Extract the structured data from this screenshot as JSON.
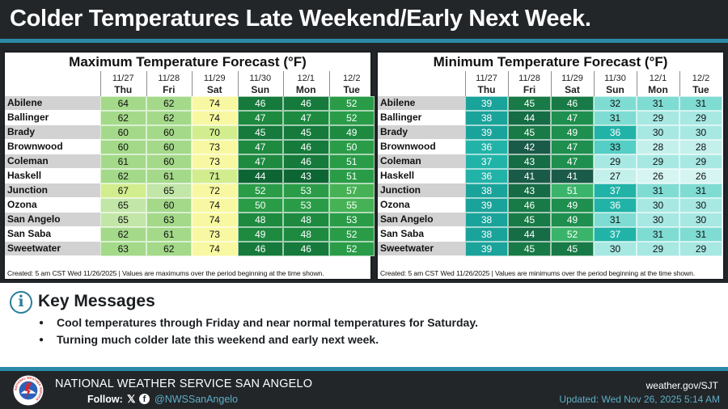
{
  "header": {
    "title": "Colder Temperatures Late Weekend/Early Next Week."
  },
  "dates": [
    "11/27",
    "11/28",
    "11/29",
    "11/30",
    "12/1",
    "12/2"
  ],
  "days": [
    "Thu",
    "Fri",
    "Sat",
    "Sun",
    "Mon",
    "Tue"
  ],
  "cities": [
    "Abilene",
    "Ballinger",
    "Brady",
    "Brownwood",
    "Coleman",
    "Haskell",
    "Junction",
    "Ozona",
    "San Angelo",
    "San Saba",
    "Sweetwater"
  ],
  "max_table": {
    "title": "Maximum Temperature Forecast (°F)",
    "values": [
      [
        64,
        62,
        74,
        46,
        46,
        52
      ],
      [
        62,
        62,
        74,
        47,
        47,
        52
      ],
      [
        60,
        60,
        70,
        45,
        45,
        49
      ],
      [
        60,
        60,
        73,
        47,
        46,
        50
      ],
      [
        61,
        60,
        73,
        47,
        46,
        51
      ],
      [
        62,
        61,
        71,
        44,
        43,
        51
      ],
      [
        67,
        65,
        72,
        52,
        53,
        57
      ],
      [
        65,
        60,
        74,
        50,
        53,
        55
      ],
      [
        65,
        63,
        74,
        48,
        48,
        53
      ],
      [
        62,
        61,
        73,
        49,
        48,
        52
      ],
      [
        63,
        62,
        74,
        46,
        46,
        52
      ]
    ],
    "footnote": "Created: 5 am CST Wed 11/26/2025  |  Values are maximums over the period beginning at the time shown."
  },
  "min_table": {
    "title": "Minimum Temperature Forecast (°F)",
    "values": [
      [
        39,
        45,
        46,
        32,
        31,
        31
      ],
      [
        38,
        44,
        47,
        31,
        29,
        29
      ],
      [
        39,
        45,
        49,
        36,
        30,
        30
      ],
      [
        36,
        42,
        47,
        33,
        28,
        28
      ],
      [
        37,
        43,
        47,
        29,
        29,
        29
      ],
      [
        36,
        41,
        41,
        27,
        26,
        26
      ],
      [
        38,
        43,
        51,
        37,
        31,
        31
      ],
      [
        39,
        46,
        49,
        36,
        30,
        30
      ],
      [
        38,
        45,
        49,
        31,
        30,
        30
      ],
      [
        38,
        44,
        52,
        37,
        31,
        31
      ],
      [
        39,
        45,
        45,
        30,
        29,
        29
      ]
    ],
    "footnote": "Created: 5 am CST Wed 11/26/2025  |  Values are minimums over the period beginning at the time shown."
  },
  "key_messages": {
    "title": "Key Messages",
    "items": [
      "Cool temperatures through Friday and near normal temperatures for Saturday.",
      "Turning much colder late this weekend and early next week."
    ]
  },
  "footer": {
    "org_name": "NATIONAL WEATHER SERVICE SAN ANGELO",
    "follow_label": "Follow:",
    "handle": "@NWSSanAngelo",
    "site": "weather.gov/SJT",
    "updated": "Updated: Wed Nov 26, 2025 5:14 AM",
    "logo_text": "NATIONAL WEATHER SERVICE"
  },
  "icons": [
    "info-icon",
    "x-logo-icon",
    "facebook-icon",
    "nws-logo-icon"
  ]
}
